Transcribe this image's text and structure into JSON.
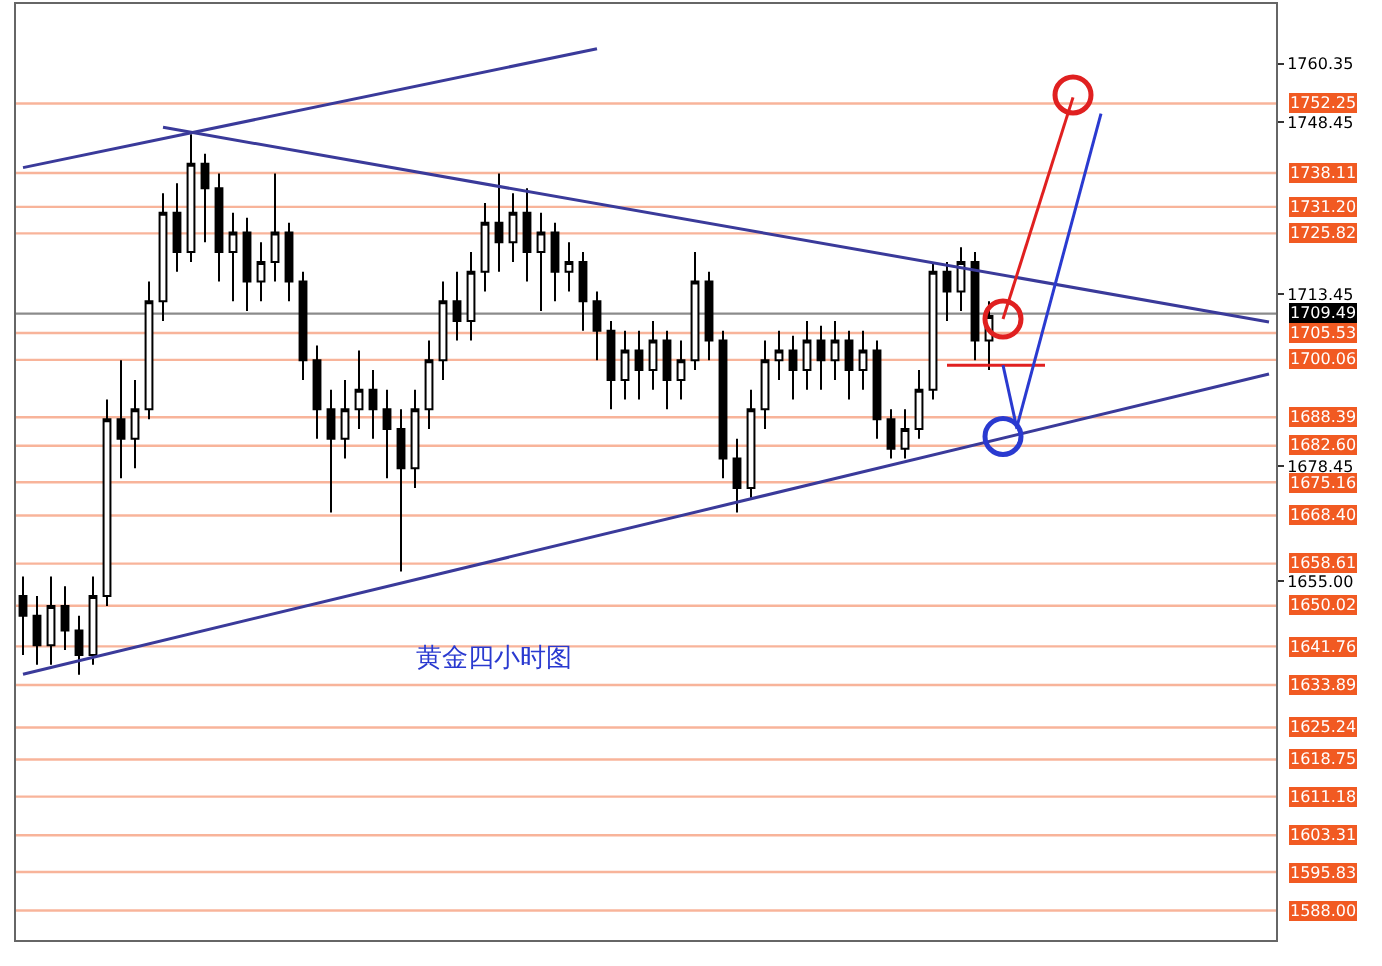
{
  "chart_data": {
    "type": "candlestick",
    "categories": [
      null,
      null,
      null,
      null,
      null,
      null,
      null,
      null,
      null,
      null,
      null,
      null,
      null,
      null,
      null,
      null,
      null,
      null,
      null,
      null,
      null,
      null,
      null,
      null,
      null,
      null,
      null,
      null,
      null,
      null,
      null,
      null,
      null,
      null,
      null,
      null,
      null,
      null,
      null,
      null,
      null,
      null,
      null,
      null,
      null,
      null,
      null,
      null,
      null,
      null,
      null,
      null,
      null,
      null,
      null,
      null,
      null,
      null,
      null,
      null,
      null,
      null,
      null,
      null,
      null,
      null,
      null,
      null,
      null,
      null,
      null,
      null,
      null,
      null,
      null,
      null,
      null,
      null,
      null,
      null,
      null,
      null,
      null,
      null,
      null,
      null,
      null,
      null,
      null,
      null
    ],
    "ohlc": [
      [
        1652,
        1656,
        1640,
        1648
      ],
      [
        1648,
        1652,
        1638,
        1642
      ],
      [
        1642,
        1656,
        1638,
        1650
      ],
      [
        1650,
        1654,
        1641,
        1645
      ],
      [
        1645,
        1648,
        1636,
        1640
      ],
      [
        1640,
        1656,
        1638,
        1652
      ],
      [
        1652,
        1692,
        1650,
        1688
      ],
      [
        1688,
        1700,
        1676,
        1684
      ],
      [
        1684,
        1696,
        1678,
        1690
      ],
      [
        1690,
        1716,
        1688,
        1712
      ],
      [
        1712,
        1734,
        1708,
        1730
      ],
      [
        1730,
        1736,
        1718,
        1722
      ],
      [
        1722,
        1746,
        1720,
        1740
      ],
      [
        1740,
        1742,
        1724,
        1735
      ],
      [
        1735,
        1738,
        1716,
        1722
      ],
      [
        1722,
        1730,
        1712,
        1726
      ],
      [
        1726,
        1729,
        1710,
        1716
      ],
      [
        1716,
        1724,
        1712,
        1720
      ],
      [
        1720,
        1738,
        1716,
        1726
      ],
      [
        1726,
        1728,
        1712,
        1716
      ],
      [
        1716,
        1718,
        1696,
        1700
      ],
      [
        1700,
        1703,
        1684,
        1690
      ],
      [
        1690,
        1694,
        1669,
        1684
      ],
      [
        1684,
        1696,
        1680,
        1690
      ],
      [
        1690,
        1702,
        1686,
        1694
      ],
      [
        1694,
        1698,
        1684,
        1690
      ],
      [
        1690,
        1694,
        1676,
        1686
      ],
      [
        1686,
        1690,
        1657,
        1678
      ],
      [
        1678,
        1694,
        1674,
        1690
      ],
      [
        1690,
        1704,
        1686,
        1700
      ],
      [
        1700,
        1716,
        1696,
        1712
      ],
      [
        1712,
        1718,
        1704,
        1708
      ],
      [
        1708,
        1722,
        1704,
        1718
      ],
      [
        1718,
        1732,
        1714,
        1728
      ],
      [
        1728,
        1738,
        1718,
        1724
      ],
      [
        1724,
        1734,
        1720,
        1730
      ],
      [
        1730,
        1735,
        1716,
        1722
      ],
      [
        1722,
        1730,
        1710,
        1726
      ],
      [
        1726,
        1728,
        1712,
        1718
      ],
      [
        1718,
        1724,
        1714,
        1720
      ],
      [
        1720,
        1722,
        1706,
        1712
      ],
      [
        1712,
        1714,
        1700,
        1706
      ],
      [
        1706,
        1708,
        1690,
        1696
      ],
      [
        1696,
        1706,
        1692,
        1702
      ],
      [
        1702,
        1706,
        1692,
        1698
      ],
      [
        1698,
        1708,
        1694,
        1704
      ],
      [
        1704,
        1706,
        1690,
        1696
      ],
      [
        1696,
        1704,
        1692,
        1700
      ],
      [
        1700,
        1722,
        1698,
        1716
      ],
      [
        1716,
        1718,
        1700,
        1704
      ],
      [
        1704,
        1706,
        1676,
        1680
      ],
      [
        1680,
        1684,
        1669,
        1674
      ],
      [
        1674,
        1694,
        1672,
        1690
      ],
      [
        1690,
        1704,
        1686,
        1700
      ],
      [
        1700,
        1706,
        1696,
        1702
      ],
      [
        1702,
        1705,
        1692,
        1698
      ],
      [
        1698,
        1708,
        1694,
        1704
      ],
      [
        1704,
        1707,
        1694,
        1700
      ],
      [
        1700,
        1708,
        1696,
        1704
      ],
      [
        1704,
        1706,
        1692,
        1698
      ],
      [
        1698,
        1706,
        1694,
        1702
      ],
      [
        1702,
        1704,
        1684,
        1688
      ],
      [
        1688,
        1690,
        1680,
        1682
      ],
      [
        1682,
        1690,
        1680,
        1686
      ],
      [
        1686,
        1698,
        1684,
        1694
      ],
      [
        1694,
        1720,
        1692,
        1718
      ],
      [
        1718,
        1720,
        1708,
        1714
      ],
      [
        1714,
        1723,
        1710,
        1720
      ],
      [
        1720,
        1722,
        1700,
        1704
      ],
      [
        1704,
        1712,
        1698,
        1709
      ],
      null,
      null,
      null,
      null,
      null,
      null,
      null,
      null,
      null,
      null,
      null,
      null,
      null,
      null,
      null,
      null,
      null,
      null,
      null,
      null
    ],
    "series": [
      {
        "type": "line",
        "color": "#3a3a9a",
        "values": [
          1739.2,
          null,
          null,
          null,
          null,
          null,
          null,
          null,
          null,
          null,
          null,
          null,
          null,
          null,
          null,
          null,
          null,
          null,
          null,
          null,
          null,
          null,
          null,
          null,
          null,
          null,
          null,
          null,
          null,
          null,
          null,
          null,
          null,
          null,
          null,
          null,
          null,
          null,
          null,
          null,
          null,
          1763.4,
          null,
          null,
          null,
          null,
          null,
          null,
          null,
          null,
          null,
          null,
          null,
          null,
          null,
          null,
          null,
          null,
          null,
          null,
          null,
          null,
          null,
          null,
          null,
          null,
          null,
          null,
          null,
          null,
          null,
          null,
          null,
          null,
          null,
          null,
          null,
          null,
          null,
          null,
          null,
          null,
          null,
          null,
          null,
          null,
          null,
          null,
          null,
          null
        ]
      },
      {
        "type": "line",
        "color": "#3a3a9a",
        "values": [
          null,
          null,
          null,
          null,
          null,
          null,
          null,
          null,
          null,
          null,
          1747.4,
          null,
          null,
          null,
          null,
          null,
          null,
          null,
          null,
          null,
          null,
          null,
          null,
          null,
          null,
          null,
          null,
          null,
          null,
          null,
          null,
          null,
          null,
          null,
          null,
          null,
          null,
          null,
          null,
          null,
          null,
          null,
          null,
          null,
          null,
          null,
          null,
          null,
          null,
          null,
          null,
          null,
          null,
          null,
          null,
          null,
          null,
          null,
          null,
          null,
          null,
          null,
          null,
          null,
          null,
          null,
          null,
          null,
          null,
          null,
          null,
          null,
          null,
          null,
          null,
          null,
          null,
          null,
          null,
          null,
          null,
          null,
          null,
          null,
          null,
          null,
          null,
          null,
          null,
          1707.8
        ]
      },
      {
        "type": "line",
        "color": "#3a3a9a",
        "values": [
          1636.1,
          null,
          null,
          null,
          null,
          null,
          null,
          null,
          null,
          null,
          null,
          null,
          null,
          null,
          null,
          null,
          null,
          null,
          null,
          null,
          null,
          null,
          null,
          null,
          null,
          null,
          null,
          null,
          null,
          null,
          null,
          null,
          null,
          null,
          null,
          null,
          null,
          null,
          null,
          null,
          null,
          null,
          null,
          null,
          null,
          null,
          null,
          null,
          null,
          null,
          null,
          null,
          null,
          null,
          null,
          null,
          null,
          null,
          null,
          null,
          null,
          null,
          null,
          null,
          null,
          null,
          null,
          null,
          null,
          null,
          null,
          null,
          null,
          null,
          null,
          null,
          null,
          null,
          null,
          null,
          null,
          null,
          null,
          null,
          null,
          null,
          null,
          null,
          null,
          1697.2
        ]
      },
      {
        "type": "line",
        "color": "#e02020",
        "values": [
          null,
          null,
          null,
          null,
          null,
          null,
          null,
          null,
          null,
          null,
          null,
          null,
          null,
          null,
          null,
          null,
          null,
          null,
          null,
          null,
          null,
          null,
          null,
          null,
          null,
          null,
          null,
          null,
          null,
          null,
          null,
          null,
          null,
          null,
          null,
          null,
          null,
          null,
          null,
          null,
          null,
          null,
          null,
          null,
          null,
          null,
          null,
          null,
          null,
          null,
          null,
          null,
          null,
          null,
          null,
          null,
          null,
          null,
          null,
          null,
          null,
          null,
          null,
          null,
          null,
          null,
          1699,
          null,
          null,
          null,
          null,
          null,
          null,
          1699,
          null,
          null,
          null,
          null,
          null,
          null,
          null,
          null,
          null,
          null,
          null,
          null,
          null,
          null,
          null,
          null
        ]
      },
      {
        "type": "line",
        "color": "#e02020",
        "values": [
          null,
          null,
          null,
          null,
          null,
          null,
          null,
          null,
          null,
          null,
          null,
          null,
          null,
          null,
          null,
          null,
          null,
          null,
          null,
          null,
          null,
          null,
          null,
          null,
          null,
          null,
          null,
          null,
          null,
          null,
          null,
          null,
          null,
          null,
          null,
          null,
          null,
          null,
          null,
          null,
          null,
          null,
          null,
          null,
          null,
          null,
          null,
          null,
          null,
          null,
          null,
          null,
          null,
          null,
          null,
          null,
          null,
          null,
          null,
          null,
          null,
          null,
          null,
          null,
          null,
          null,
          null,
          null,
          null,
          null,
          1708.4,
          null,
          null,
          null,
          null,
          1753.5,
          null,
          null,
          null,
          null,
          null,
          null,
          null,
          null,
          null,
          null,
          null,
          null,
          null,
          null
        ]
      },
      {
        "type": "line",
        "color": "#2a3ad0",
        "values": [
          null,
          null,
          null,
          null,
          null,
          null,
          null,
          null,
          null,
          null,
          null,
          null,
          null,
          null,
          null,
          null,
          null,
          null,
          null,
          null,
          null,
          null,
          null,
          null,
          null,
          null,
          null,
          null,
          null,
          null,
          null,
          null,
          null,
          null,
          null,
          null,
          null,
          null,
          null,
          null,
          null,
          null,
          null,
          null,
          null,
          null,
          null,
          null,
          null,
          null,
          null,
          null,
          null,
          null,
          null,
          null,
          null,
          null,
          null,
          null,
          null,
          null,
          null,
          null,
          null,
          null,
          null,
          null,
          null,
          null,
          null,
          1686.5,
          null,
          null,
          null,
          null,
          null,
          1750.2,
          null,
          null,
          null,
          null,
          null,
          null,
          null,
          null,
          null,
          null,
          null,
          null
        ]
      },
      {
        "type": "line",
        "color": "#2a3ad0",
        "values": [
          null,
          null,
          null,
          null,
          null,
          null,
          null,
          null,
          null,
          null,
          null,
          null,
          null,
          null,
          null,
          null,
          null,
          null,
          null,
          null,
          null,
          null,
          null,
          null,
          null,
          null,
          null,
          null,
          null,
          null,
          null,
          null,
          null,
          null,
          null,
          null,
          null,
          null,
          null,
          null,
          null,
          null,
          null,
          null,
          null,
          null,
          null,
          null,
          null,
          null,
          null,
          null,
          null,
          null,
          null,
          null,
          null,
          null,
          null,
          null,
          null,
          null,
          null,
          null,
          null,
          null,
          null,
          null,
          null,
          null,
          1699,
          1686,
          null,
          null,
          null,
          null,
          null,
          null,
          null,
          null,
          null,
          null,
          null,
          null,
          null,
          null,
          null,
          null,
          null,
          null
        ]
      },
      {
        "type": "scatter",
        "marker": "circle",
        "color": "#e02020",
        "values": [
          null,
          null,
          null,
          null,
          null,
          null,
          null,
          null,
          null,
          null,
          null,
          null,
          null,
          null,
          null,
          null,
          null,
          null,
          null,
          null,
          null,
          null,
          null,
          null,
          null,
          null,
          null,
          null,
          null,
          null,
          null,
          null,
          null,
          null,
          null,
          null,
          null,
          null,
          null,
          null,
          null,
          null,
          null,
          null,
          null,
          null,
          null,
          null,
          null,
          null,
          null,
          null,
          null,
          null,
          null,
          null,
          null,
          null,
          null,
          null,
          null,
          null,
          null,
          null,
          null,
          null,
          null,
          null,
          null,
          null,
          1708.4,
          null,
          null,
          null,
          null,
          1754,
          null,
          null,
          null,
          null,
          null,
          null,
          null,
          null,
          null,
          null,
          null,
          null,
          null,
          null
        ]
      },
      {
        "type": "scatter",
        "marker": "circle",
        "color": "#2a3ad0",
        "values": [
          null,
          null,
          null,
          null,
          null,
          null,
          null,
          null,
          null,
          null,
          null,
          null,
          null,
          null,
          null,
          null,
          null,
          null,
          null,
          null,
          null,
          null,
          null,
          null,
          null,
          null,
          null,
          null,
          null,
          null,
          null,
          null,
          null,
          null,
          null,
          null,
          null,
          null,
          null,
          null,
          null,
          null,
          null,
          null,
          null,
          null,
          null,
          null,
          null,
          null,
          null,
          null,
          null,
          null,
          null,
          null,
          null,
          null,
          null,
          null,
          null,
          null,
          null,
          null,
          null,
          null,
          null,
          null,
          null,
          null,
          1684.5,
          null,
          null,
          null,
          null,
          null,
          null,
          null,
          null,
          null,
          null,
          null,
          null,
          null,
          null,
          null,
          null,
          null,
          null,
          null
        ]
      }
    ],
    "ylim": [
      1582,
      1772.5
    ],
    "yticks": [
      {
        "value": 1760.35,
        "label": "1760.35"
      },
      {
        "value": 1748.45,
        "label": "1748.45"
      },
      {
        "value": 1713.45,
        "label": "1713.45"
      },
      {
        "value": 1678.45,
        "label": "1678.45"
      },
      {
        "value": 1655.0,
        "label": "1655.00"
      }
    ],
    "ref_lines": [
      {
        "axis": "y",
        "value": 1752.25,
        "label": "1752.25",
        "color": "#f15a22"
      },
      {
        "axis": "y",
        "value": 1738.11,
        "label": "1738.11",
        "color": "#f15a22"
      },
      {
        "axis": "y",
        "value": 1731.2,
        "label": "1731.20",
        "color": "#f15a22"
      },
      {
        "axis": "y",
        "value": 1725.82,
        "label": "1725.82",
        "color": "#f15a22"
      },
      {
        "axis": "y",
        "value": 1709.49,
        "label": "1709.49",
        "color": "#000000"
      },
      {
        "axis": "y",
        "value": 1705.53,
        "label": "1705.53",
        "color": "#f15a22"
      },
      {
        "axis": "y",
        "value": 1700.06,
        "label": "1700.06",
        "color": "#f15a22"
      },
      {
        "axis": "y",
        "value": 1688.39,
        "label": "1688.39",
        "color": "#f15a22"
      },
      {
        "axis": "y",
        "value": 1682.6,
        "label": "1682.60",
        "color": "#f15a22"
      },
      {
        "axis": "y",
        "value": 1675.16,
        "label": "1675.16",
        "color": "#f15a22"
      },
      {
        "axis": "y",
        "value": 1668.4,
        "label": "1668.40",
        "color": "#f15a22"
      },
      {
        "axis": "y",
        "value": 1658.61,
        "label": "1658.61",
        "color": "#f15a22"
      },
      {
        "axis": "y",
        "value": 1650.02,
        "label": "1650.02",
        "color": "#f15a22"
      },
      {
        "axis": "y",
        "value": 1641.76,
        "label": "1641.76",
        "color": "#f15a22"
      },
      {
        "axis": "y",
        "value": 1633.89,
        "label": "1633.89",
        "color": "#f15a22"
      },
      {
        "axis": "y",
        "value": 1625.24,
        "label": "1625.24",
        "color": "#f15a22"
      },
      {
        "axis": "y",
        "value": 1618.75,
        "label": "1618.75",
        "color": "#f15a22"
      },
      {
        "axis": "y",
        "value": 1611.18,
        "label": "1611.18",
        "color": "#f15a22"
      },
      {
        "axis": "y",
        "value": 1603.31,
        "label": "1603.31",
        "color": "#f15a22"
      },
      {
        "axis": "y",
        "value": 1595.83,
        "label": "1595.83",
        "color": "#f15a22"
      },
      {
        "axis": "y",
        "value": 1588.0,
        "label": "1588.00",
        "color": "#f15a22"
      }
    ],
    "annotations": [
      "黄金四小时图"
    ],
    "tick_labels": "y"
  }
}
